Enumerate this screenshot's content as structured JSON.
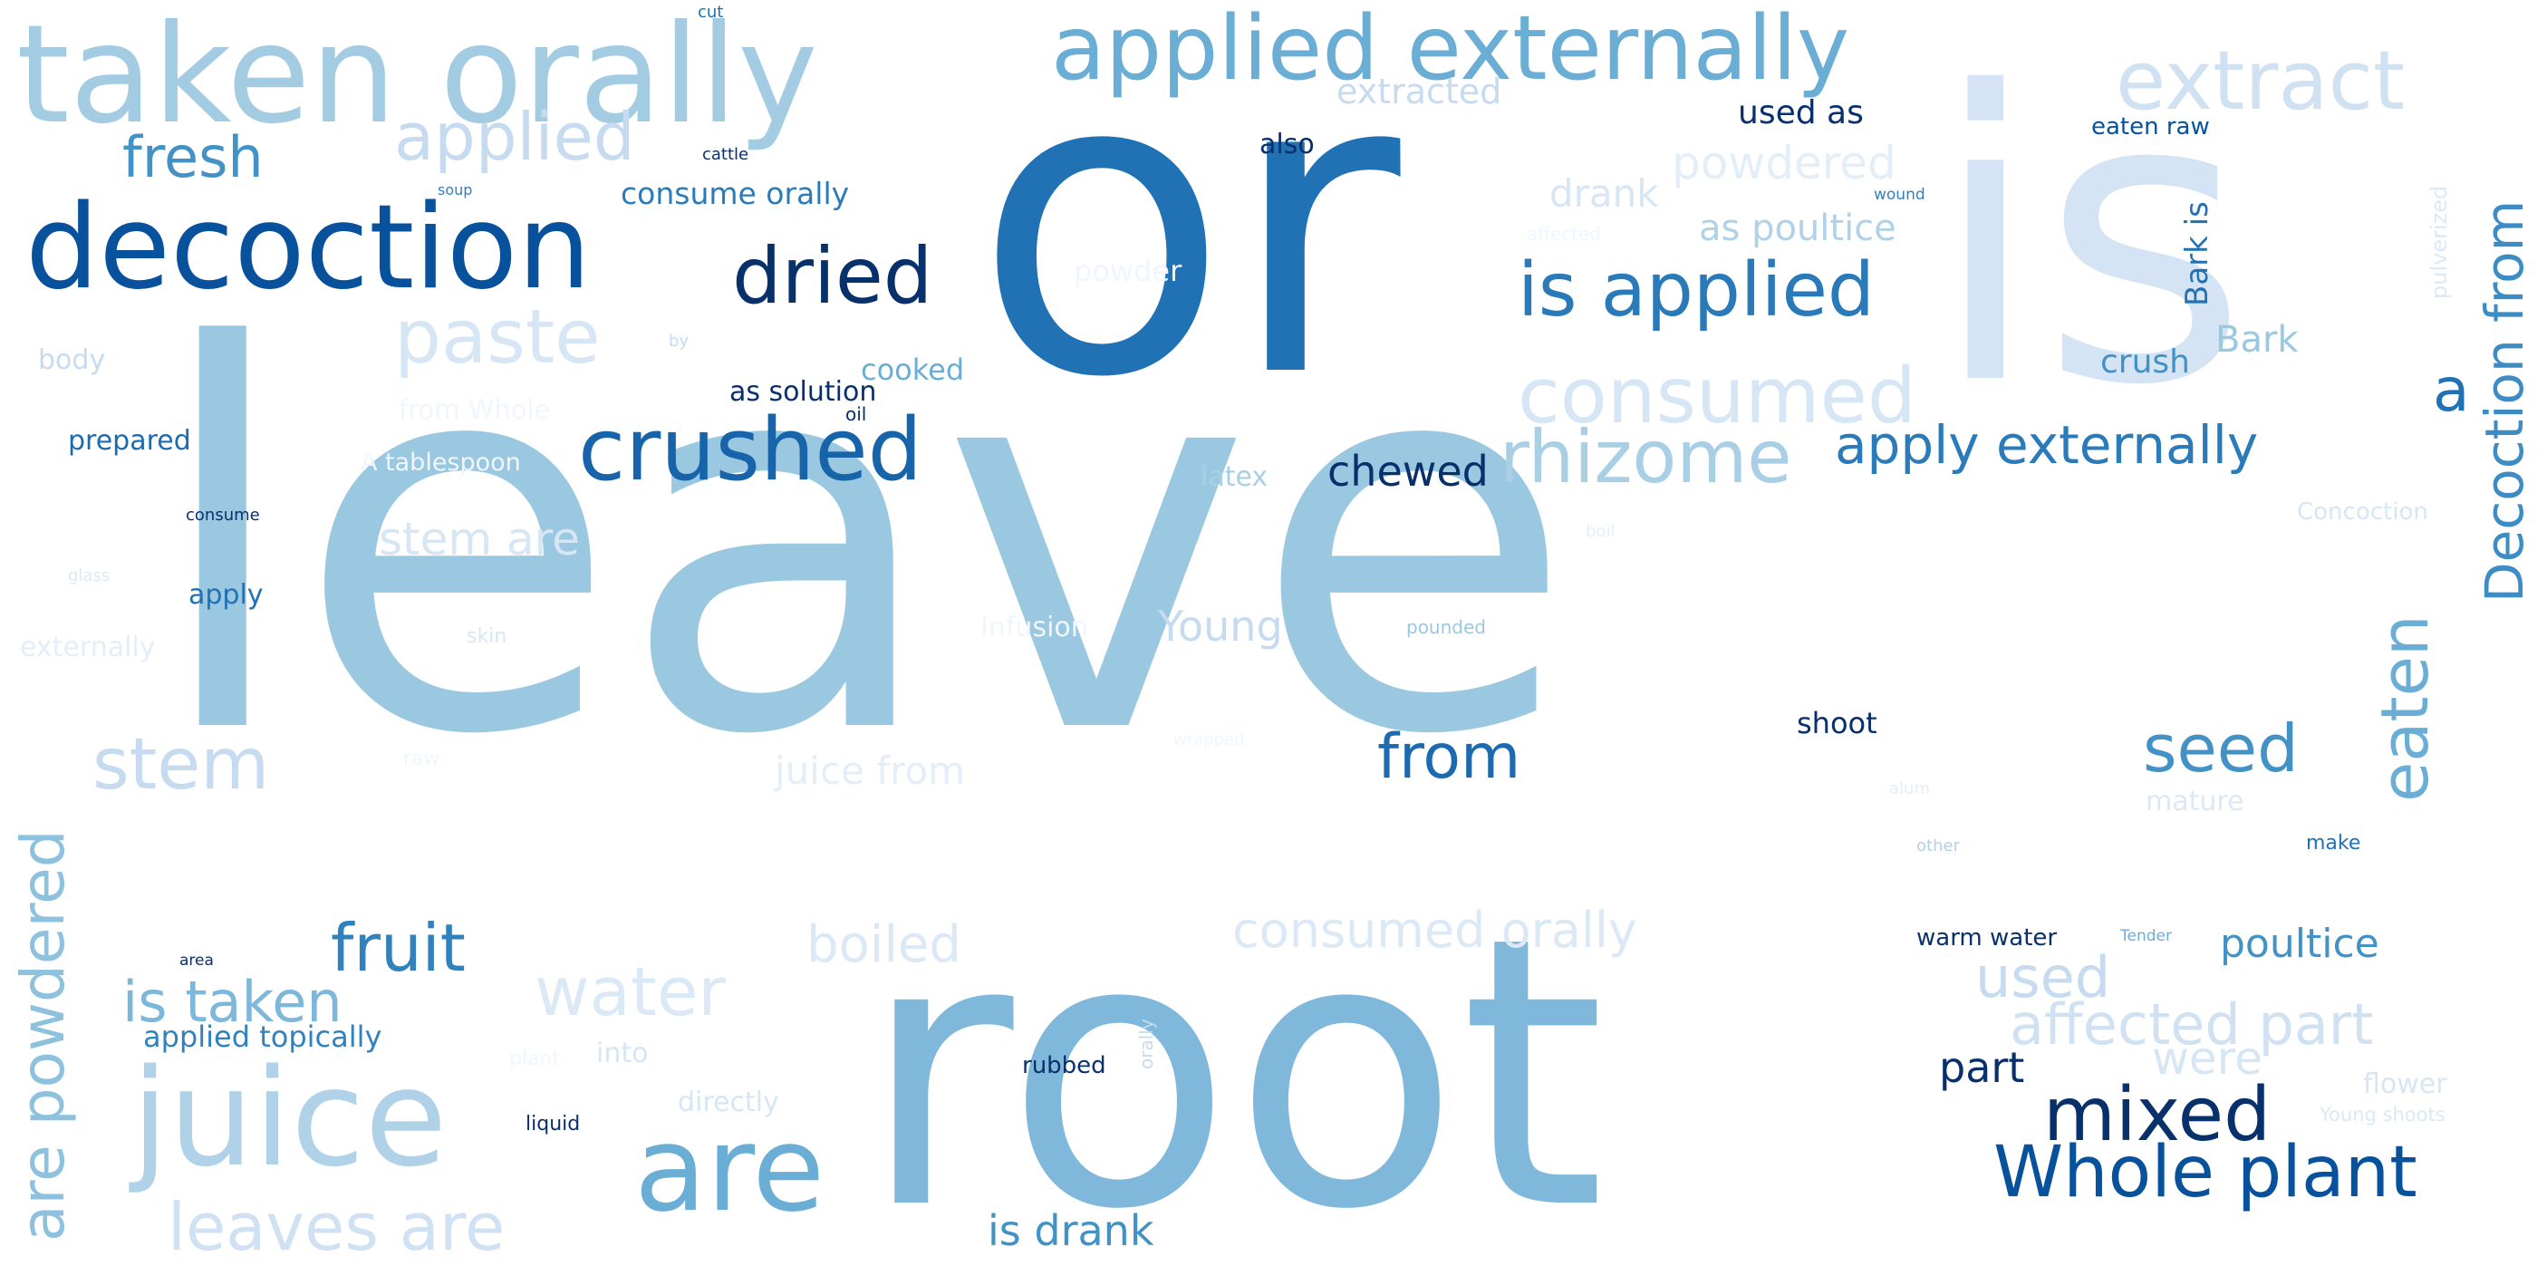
{
  "words": [
    {
      "text": "leave",
      "color": "#9ac8e0"
    },
    {
      "text": "or",
      "color": "#2171b5"
    },
    {
      "text": "is",
      "color": "#d4e4f4"
    },
    {
      "text": "root",
      "color": "#7fb8da"
    },
    {
      "text": "taken orally",
      "color": "#a3cce3"
    },
    {
      "text": "applied externally",
      "color": "#6aaed6"
    },
    {
      "text": "decoction",
      "color": "#08519c"
    },
    {
      "text": "extract",
      "color": "#d0e1f2"
    },
    {
      "text": "juice",
      "color": "#b0d2e8"
    },
    {
      "text": "are",
      "color": "#6aaed6"
    },
    {
      "text": "Whole plant",
      "color": "#08519c"
    },
    {
      "text": "dried",
      "color": "#08306b"
    },
    {
      "text": "crushed",
      "color": "#1764ab"
    },
    {
      "text": "is applied",
      "color": "#2a7ab9"
    },
    {
      "text": "consumed",
      "color": "#d6e6f4"
    },
    {
      "text": "rhizome",
      "color": "#a9cfe5"
    },
    {
      "text": "paste",
      "color": "#d6e6f4"
    },
    {
      "text": "applied",
      "color": "#c6dbef"
    },
    {
      "text": "fresh",
      "color": "#4292c6"
    },
    {
      "text": "stem",
      "color": "#c6dbef"
    },
    {
      "text": "from",
      "color": "#1c6aaf"
    },
    {
      "text": "mixed",
      "color": "#08306b"
    },
    {
      "text": "seed",
      "color": "#4292c6"
    },
    {
      "text": "leaves are",
      "color": "#cfe1f2"
    },
    {
      "text": "fruit",
      "color": "#3181bd"
    },
    {
      "text": "water",
      "color": "#dbe9f6"
    },
    {
      "text": "is taken",
      "color": "#7db8da"
    },
    {
      "text": "affected part",
      "color": "#d0e2f2"
    },
    {
      "text": "apply externally",
      "color": "#2b7bba"
    },
    {
      "text": "Decoction from",
      "color": "#3d8dc4"
    },
    {
      "text": "eaten",
      "color": "#6aaed6"
    },
    {
      "text": "are powdered",
      "color": "#8dc1dd"
    },
    {
      "text": "consumed orally",
      "color": "#dbe9f6"
    },
    {
      "text": "boiled",
      "color": "#dbe9f6"
    },
    {
      "text": "used",
      "color": "#c6dbef"
    },
    {
      "text": "poultice",
      "color": "#4292c6"
    },
    {
      "text": "a",
      "color": "#2171b5"
    },
    {
      "text": "chewed",
      "color": "#08306b"
    },
    {
      "text": "is drank",
      "color": "#4292c6"
    },
    {
      "text": "part",
      "color": "#08306b"
    },
    {
      "text": "were",
      "color": "#d6e6f4"
    },
    {
      "text": "powdered",
      "color": "#e3eef8"
    },
    {
      "text": "stem are",
      "color": "#d6e6f4"
    },
    {
      "text": "Young",
      "color": "#c6dbef"
    },
    {
      "text": "juice from",
      "color": "#e3eef8"
    },
    {
      "text": "drank",
      "color": "#d6e6f4"
    },
    {
      "text": "as poultice",
      "color": "#b0d2e8"
    },
    {
      "text": "extracted",
      "color": "#c6dbef"
    },
    {
      "text": "used as",
      "color": "#08306b"
    },
    {
      "text": "consume orally",
      "color": "#2b7bba"
    },
    {
      "text": "applied topically",
      "color": "#3181bd"
    },
    {
      "text": "Bark",
      "color": "#9ac8e0"
    },
    {
      "text": "crush",
      "color": "#4292c6"
    },
    {
      "text": "Bark is",
      "color": "#2171b5"
    },
    {
      "text": "eaten raw",
      "color": "#08519c"
    },
    {
      "text": "prepared",
      "color": "#1c6aaf"
    },
    {
      "text": "cooked",
      "color": "#6aaed6"
    },
    {
      "text": "as solution",
      "color": "#08306b"
    },
    {
      "text": "also",
      "color": "#08306b"
    },
    {
      "text": "powder",
      "color": "#f0f6fd"
    },
    {
      "text": "shoot",
      "color": "#08306b"
    },
    {
      "text": "latex",
      "color": "#a9cfe5"
    },
    {
      "text": "apply",
      "color": "#2171b5"
    },
    {
      "text": "body",
      "color": "#c6dbef"
    },
    {
      "text": "from Whole",
      "color": "#f0f6fd"
    },
    {
      "text": "A tablespoon",
      "color": "#f0f6fd"
    },
    {
      "text": "Infusion",
      "color": "#f0f6fd"
    },
    {
      "text": "into",
      "color": "#d6e6f4"
    },
    {
      "text": "directly",
      "color": "#d6e6f4"
    },
    {
      "text": "mature",
      "color": "#dbe9f6"
    },
    {
      "text": "flower",
      "color": "#d6e6f4"
    },
    {
      "text": "Concoction",
      "color": "#d6e6f4"
    },
    {
      "text": "externally",
      "color": "#e3eef8"
    },
    {
      "text": "warm water",
      "color": "#08306b"
    },
    {
      "text": "rubbed",
      "color": "#08306b"
    },
    {
      "text": "pulverized",
      "color": "#dbe9f6"
    },
    {
      "text": "cut",
      "color": "#2171b5"
    },
    {
      "text": "cattle",
      "color": "#08306b"
    },
    {
      "text": "soup",
      "color": "#3181bd"
    },
    {
      "text": "oil",
      "color": "#08306b"
    },
    {
      "text": "by",
      "color": "#c6dbef"
    },
    {
      "text": "consume",
      "color": "#08306b"
    },
    {
      "text": "glass",
      "color": "#dbe9f6"
    },
    {
      "text": "skin",
      "color": "#d6e6f4"
    },
    {
      "text": "raw",
      "color": "#f0f6fd"
    },
    {
      "text": "wound",
      "color": "#3181bd"
    },
    {
      "text": "affected",
      "color": "#f0f6fd"
    },
    {
      "text": "boil",
      "color": "#e3eef8"
    },
    {
      "text": "pounded",
      "color": "#9ac8e0"
    },
    {
      "text": "wrapped",
      "color": "#f0f6fd"
    },
    {
      "text": "alum",
      "color": "#e3eef8"
    },
    {
      "text": "other",
      "color": "#b0d2e8"
    },
    {
      "text": "make",
      "color": "#2171b5"
    },
    {
      "text": "Tender",
      "color": "#6aaed6"
    },
    {
      "text": "Young shoots",
      "color": "#dbe9f6"
    },
    {
      "text": "area",
      "color": "#08306b"
    },
    {
      "text": "liquid",
      "color": "#08306b"
    },
    {
      "text": "plant",
      "color": "#f0f6fd"
    },
    {
      "text": "orally",
      "color": "#c6dbef"
    }
  ]
}
